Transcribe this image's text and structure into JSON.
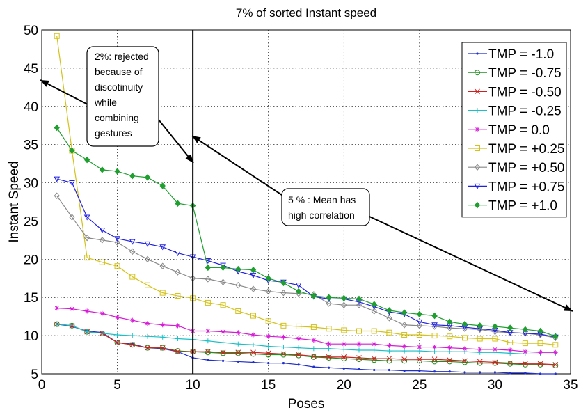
{
  "chart_data": {
    "type": "line",
    "title": "7% of sorted Instant speed",
    "xlabel": "Poses",
    "ylabel": "Instant Speed",
    "xlim": [
      0,
      35
    ],
    "ylim": [
      5,
      50
    ],
    "xticks": [
      0,
      5,
      10,
      15,
      20,
      25,
      30,
      35
    ],
    "yticks": [
      5,
      10,
      15,
      20,
      25,
      30,
      35,
      40,
      45,
      50
    ],
    "grid": true,
    "legend_position": "top-right",
    "series": [
      {
        "name": "TMP = -1.0",
        "color": "#1f2fd0",
        "marker": "point",
        "values": [
          11.5,
          11.2,
          10.6,
          10.4,
          9.1,
          8.9,
          8.4,
          8.3,
          7.9,
          7.1,
          6.8,
          6.7,
          6.6,
          6.5,
          6.4,
          6.4,
          6.2,
          5.9,
          5.8,
          5.7,
          5.6,
          5.5,
          5.5,
          5.4,
          5.4,
          5.3,
          5.3,
          5.2,
          5.2,
          5.2,
          5.1,
          5.1,
          5.0,
          5.0
        ]
      },
      {
        "name": "TMP = -0.75",
        "color": "#1f8f1f",
        "marker": "circle",
        "values": [
          11.5,
          11.3,
          10.5,
          10.3,
          9.1,
          8.8,
          8.4,
          8.4,
          8.0,
          7.9,
          7.8,
          7.7,
          7.7,
          7.6,
          7.5,
          7.5,
          7.4,
          7.2,
          7.1,
          7.0,
          6.9,
          6.8,
          6.7,
          6.7,
          6.7,
          6.6,
          6.6,
          6.5,
          6.4,
          6.4,
          6.3,
          6.2,
          6.2,
          6.1
        ]
      },
      {
        "name": "TMP = -0.50",
        "color": "#d01f1f",
        "marker": "x",
        "values": [
          11.5,
          11.3,
          10.5,
          10.3,
          9.1,
          8.8,
          8.4,
          8.4,
          7.9,
          7.9,
          7.9,
          7.8,
          7.8,
          7.8,
          7.7,
          7.6,
          7.5,
          7.3,
          7.2,
          7.2,
          7.1,
          7.0,
          7.0,
          6.9,
          6.9,
          6.9,
          6.8,
          6.7,
          6.6,
          6.5,
          6.4,
          6.3,
          6.3,
          6.2
        ]
      },
      {
        "name": "TMP = -0.25",
        "color": "#19c0c8",
        "marker": "plus",
        "values": [
          11.5,
          11.3,
          10.5,
          10.3,
          10.1,
          10.0,
          9.9,
          9.8,
          9.6,
          9.5,
          9.3,
          9.1,
          8.9,
          8.8,
          8.6,
          8.5,
          8.4,
          8.3,
          8.3,
          8.2,
          8.1,
          8.1,
          8.0,
          8.0,
          8.0,
          7.9,
          7.9,
          7.9,
          7.8,
          7.8,
          7.7,
          7.6,
          7.6,
          7.6
        ]
      },
      {
        "name": "TMP = 0.0",
        "color": "#d81ad8",
        "marker": "star",
        "values": [
          13.6,
          13.5,
          13.2,
          12.9,
          12.4,
          12.0,
          11.6,
          11.4,
          11.3,
          10.6,
          10.6,
          10.5,
          10.4,
          10.1,
          9.9,
          9.8,
          9.6,
          9.4,
          8.9,
          8.9,
          8.9,
          8.9,
          8.7,
          8.6,
          8.5,
          8.5,
          8.4,
          8.3,
          8.2,
          8.2,
          8.1,
          7.9,
          7.8,
          7.8
        ]
      },
      {
        "name": "TMP = +0.25",
        "color": "#d4c21a",
        "marker": "square",
        "values": [
          49.2,
          34.2,
          20.2,
          19.6,
          19.1,
          17.7,
          16.6,
          15.6,
          15.2,
          14.9,
          14.3,
          14.0,
          13.2,
          12.6,
          11.9,
          11.3,
          11.2,
          11.1,
          10.9,
          10.7,
          10.6,
          10.6,
          10.4,
          10.1,
          10.1,
          10.0,
          9.9,
          9.7,
          9.6,
          9.6,
          9.1,
          9.0,
          9.0,
          8.8
        ]
      },
      {
        "name": "TMP = +0.50",
        "color": "#888888",
        "marker": "diamond",
        "values": [
          28.3,
          25.5,
          22.8,
          22.5,
          22.2,
          21.0,
          20.0,
          19.1,
          18.3,
          17.5,
          17.4,
          17.0,
          16.6,
          16.1,
          15.8,
          15.6,
          15.5,
          15.4,
          14.2,
          14.0,
          14.0,
          13.2,
          12.3,
          11.4,
          11.3,
          11.2,
          11.0,
          10.9,
          10.8,
          10.5,
          10.4,
          10.3,
          10.1,
          9.7
        ]
      },
      {
        "name": "TMP = +0.75",
        "color": "#2020e0",
        "marker": "triangle-down",
        "values": [
          30.5,
          30.0,
          25.5,
          23.8,
          22.7,
          22.3,
          22.0,
          21.6,
          20.8,
          20.3,
          19.8,
          19.2,
          18.4,
          17.9,
          17.2,
          17.0,
          16.6,
          15.1,
          14.8,
          14.8,
          14.4,
          13.8,
          13.1,
          12.8,
          11.8,
          11.4,
          11.3,
          11.1,
          10.9,
          10.7,
          10.4,
          10.3,
          10.2,
          9.8
        ]
      },
      {
        "name": "TMP = +1.0",
        "color": "#1f9f2f",
        "marker": "diamond-filled",
        "values": [
          37.2,
          34.2,
          33.0,
          31.7,
          31.5,
          30.9,
          30.7,
          29.6,
          27.3,
          27.0,
          18.9,
          18.9,
          18.7,
          18.6,
          17.5,
          16.9,
          15.8,
          15.2,
          15.0,
          14.9,
          14.8,
          14.1,
          13.3,
          13.0,
          12.8,
          12.6,
          11.8,
          11.5,
          11.3,
          11.2,
          11.0,
          10.8,
          10.6,
          9.9
        ]
      }
    ],
    "x_series": [
      1,
      2,
      3,
      4,
      5,
      6,
      7,
      8,
      9,
      10,
      11,
      12,
      13,
      14,
      15,
      16,
      17,
      18,
      19,
      20,
      21,
      22,
      23,
      24,
      25,
      26,
      27,
      28,
      29,
      30,
      31,
      32,
      33,
      34
    ],
    "vertical_line_x": 10,
    "annotations": [
      {
        "text_lines": [
          "2%: rejected",
          "because of",
          "discotinuity",
          "while",
          "combining",
          "gestures"
        ]
      },
      {
        "text_lines": [
          "5 % : Mean has",
          "high correlation"
        ]
      }
    ]
  }
}
